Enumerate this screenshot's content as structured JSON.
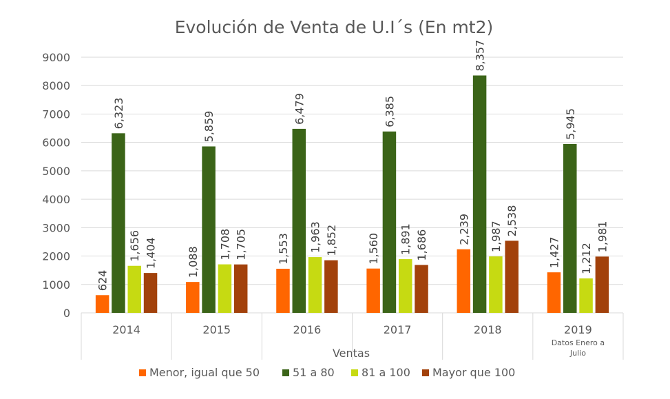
{
  "chart_data": {
    "type": "bar",
    "title": "Evolución de Venta de U.I´s (En mt2)",
    "xlabel": "Ventas",
    "ylabel": "",
    "categories": [
      "2014",
      "2015",
      "2016",
      "2017",
      "2018",
      "2019"
    ],
    "category_sublabels": [
      "",
      "",
      "",
      "",
      "",
      "Datos Enero a Julio"
    ],
    "ylim": [
      0,
      9000
    ],
    "yticks": [
      0,
      1000,
      2000,
      3000,
      4000,
      5000,
      6000,
      7000,
      8000,
      9000
    ],
    "grid": true,
    "legend_position": "bottom",
    "series": [
      {
        "name": "Menor, igual que 50",
        "color": "#FF6600",
        "values": [
          624,
          1088,
          1553,
          1560,
          2239,
          1427
        ]
      },
      {
        "name": "51 a 80",
        "color": "#3B6418",
        "values": [
          6323,
          5859,
          6479,
          6385,
          8357,
          5945
        ]
      },
      {
        "name": "81 a 100",
        "color": "#C6DA12",
        "values": [
          1656,
          1708,
          1963,
          1891,
          1987,
          1212
        ]
      },
      {
        "name": "Mayor que 100",
        "color": "#A2410B",
        "values": [
          1404,
          1705,
          1852,
          1686,
          2538,
          1981
        ]
      }
    ]
  }
}
